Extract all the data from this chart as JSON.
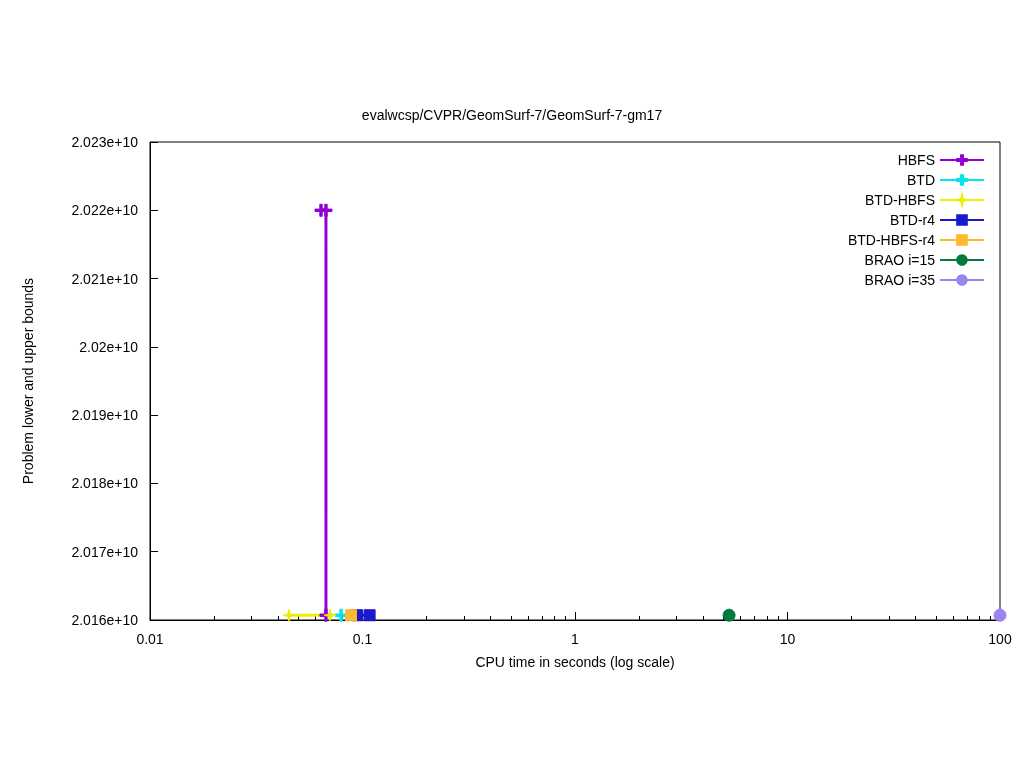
{
  "chart_data": {
    "type": "line",
    "title": "evalwcsp/CVPR/GeomSurf-7/GeomSurf-7-gm17",
    "xlabel": "CPU time in seconds (log scale)",
    "ylabel": "Problem lower and upper bounds",
    "log": "x",
    "grid": false,
    "legend": "top right",
    "xlim": [
      0.01,
      100
    ],
    "xticks": [
      0.01,
      0.1,
      1,
      10,
      100
    ],
    "ylim": [
      20160000000,
      20230000000
    ],
    "yticks": [
      {
        "value": 20160000000,
        "label": "2.016e+10"
      },
      {
        "value": 20170000000,
        "label": "2.017e+10"
      },
      {
        "value": 20180000000,
        "label": "2.018e+10"
      },
      {
        "value": 20190000000,
        "label": "2.019e+10"
      },
      {
        "value": 20200000000,
        "label": "2.02e+10"
      },
      {
        "value": 20210000000,
        "label": "2.021e+10"
      },
      {
        "value": 20220000000,
        "label": "2.022e+10"
      },
      {
        "value": 20230000000,
        "label": "2.023e+10"
      }
    ],
    "series": [
      {
        "name": "HBFS",
        "color": "#9400d3",
        "marker": "cross",
        "x": [
          0.0638,
          0.0673,
          0.0673
        ],
        "values": [
          20220000000,
          20220000000,
          20160700000
        ]
      },
      {
        "name": "BTD",
        "color": "#00e5ee",
        "marker": "cross",
        "x": [
          0.0793
        ],
        "values": [
          20160700000
        ]
      },
      {
        "name": "BTD-HBFS",
        "color": "#eeee00",
        "marker": "star",
        "x": [
          0.0451,
          0.0703
        ],
        "values": [
          20160700000,
          20160700000
        ]
      },
      {
        "name": "BTD-r4",
        "color": "#1a1acd",
        "marker": "square",
        "x": [
          0.0943,
          0.108
        ],
        "values": [
          20160700000,
          20160700000
        ]
      },
      {
        "name": "BTD-HBFS-r4",
        "color": "#ffb92f",
        "marker": "square",
        "x": [
          0.0883
        ],
        "values": [
          20160700000
        ]
      },
      {
        "name": "BRAO i=15",
        "color": "#007a3d",
        "marker": "circle",
        "x": [
          5.31
        ],
        "values": [
          20160700000
        ]
      },
      {
        "name": "BRAO i=35",
        "color": "#9b84f0",
        "marker": "circle",
        "x": [
          100
        ],
        "values": [
          20160700000
        ]
      }
    ]
  }
}
